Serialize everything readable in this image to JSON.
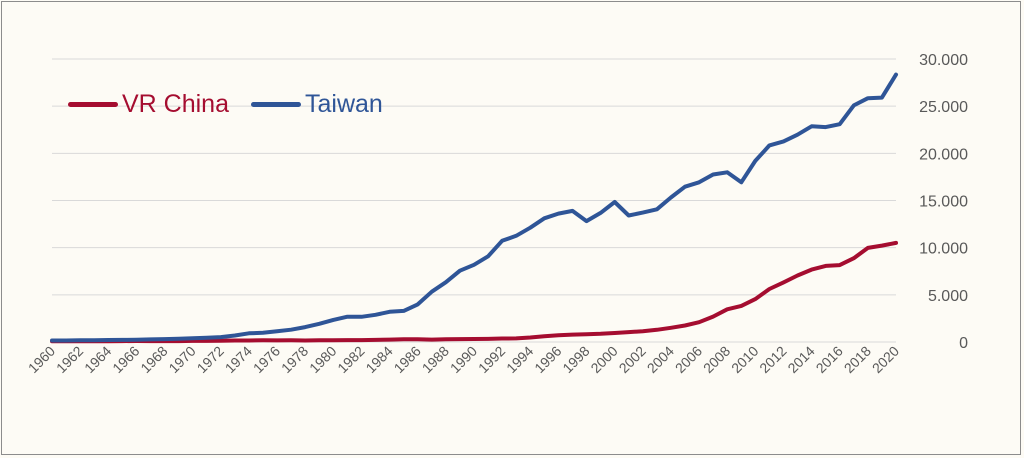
{
  "chart_data": {
    "type": "line",
    "title": "",
    "xlabel": "",
    "ylabel": "",
    "x": [
      1960,
      1961,
      1962,
      1963,
      1964,
      1965,
      1966,
      1967,
      1968,
      1969,
      1970,
      1971,
      1972,
      1973,
      1974,
      1975,
      1976,
      1977,
      1978,
      1979,
      1980,
      1981,
      1982,
      1983,
      1984,
      1985,
      1986,
      1987,
      1988,
      1989,
      1990,
      1991,
      1992,
      1993,
      1994,
      1995,
      1996,
      1997,
      1998,
      1999,
      2000,
      2001,
      2002,
      2003,
      2004,
      2005,
      2006,
      2007,
      2008,
      2009,
      2010,
      2011,
      2012,
      2013,
      2014,
      2015,
      2016,
      2017,
      2018,
      2019,
      2020
    ],
    "x_tick_labels": [
      "1960",
      "1962",
      "1964",
      "1966",
      "1968",
      "1970",
      "1972",
      "1974",
      "1976",
      "1978",
      "1980",
      "1982",
      "1984",
      "1986",
      "1988",
      "1990",
      "1992",
      "1994",
      "1996",
      "1998",
      "2000",
      "2002",
      "2004",
      "2006",
      "2008",
      "2010",
      "2012",
      "2014",
      "2016",
      "2018",
      "2020"
    ],
    "y_tick_labels": [
      "0",
      "5.000",
      "10.000",
      "15.000",
      "20.000",
      "25.000",
      "30.000"
    ],
    "y_ticks": [
      0,
      5000,
      10000,
      15000,
      20000,
      25000,
      30000
    ],
    "ylim": [
      0,
      30000
    ],
    "grid": true,
    "legend_position": "top-left",
    "series": [
      {
        "name": "VR China",
        "color": "#a50d30",
        "values": [
          90,
          76,
          70,
          74,
          85,
          98,
          104,
          96,
          91,
          100,
          113,
          119,
          132,
          157,
          160,
          178,
          165,
          185,
          156,
          183,
          195,
          197,
          203,
          225,
          250,
          294,
          281,
          252,
          284,
          311,
          318,
          333,
          366,
          377,
          473,
          610,
          709,
          782,
          829,
          874,
          959,
          1053,
          1149,
          1288,
          1509,
          1753,
          2099,
          2694,
          3468,
          3832,
          4550,
          5618,
          6317,
          7051,
          7679,
          8066,
          8148,
          8879,
          9977,
          10217,
          10500
        ]
      },
      {
        "name": "Taiwan",
        "color": "#2f5597",
        "values": [
          160,
          155,
          175,
          190,
          215,
          225,
          245,
          275,
          310,
          345,
          390,
          445,
          520,
          690,
          920,
          970,
          1130,
          1300,
          1580,
          1930,
          2340,
          2680,
          2670,
          2880,
          3200,
          3300,
          3990,
          5330,
          6340,
          7560,
          8180,
          9090,
          10730,
          11260,
          12120,
          13110,
          13610,
          13900,
          12820,
          13690,
          14840,
          13410,
          13720,
          14070,
          15320,
          16460,
          16930,
          17760,
          17990,
          16930,
          19200,
          20840,
          21270,
          21970,
          22870,
          22780,
          23090,
          25080,
          25840,
          25910,
          28350
        ]
      }
    ]
  }
}
